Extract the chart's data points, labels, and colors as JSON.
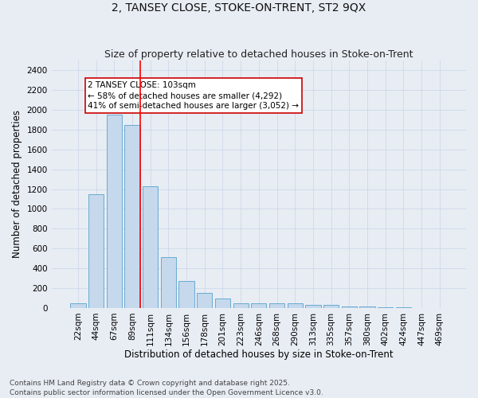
{
  "title1": "2, TANSEY CLOSE, STOKE-ON-TRENT, ST2 9QX",
  "title2": "Size of property relative to detached houses in Stoke-on-Trent",
  "xlabel": "Distribution of detached houses by size in Stoke-on-Trent",
  "ylabel": "Number of detached properties",
  "categories": [
    "22sqm",
    "44sqm",
    "67sqm",
    "89sqm",
    "111sqm",
    "134sqm",
    "156sqm",
    "178sqm",
    "201sqm",
    "223sqm",
    "246sqm",
    "268sqm",
    "290sqm",
    "313sqm",
    "335sqm",
    "357sqm",
    "380sqm",
    "402sqm",
    "424sqm",
    "447sqm",
    "469sqm"
  ],
  "values": [
    50,
    1150,
    1950,
    1850,
    1230,
    510,
    270,
    155,
    95,
    50,
    50,
    50,
    45,
    35,
    30,
    18,
    12,
    7,
    5,
    3,
    2
  ],
  "bar_color": "#c5d8ec",
  "bar_edge_color": "#6aabd2",
  "grid_color": "#cdd8e8",
  "background_color": "#e8edf4",
  "red_line_index": 3.42,
  "annotation_text": "2 TANSEY CLOSE: 103sqm\n← 58% of detached houses are smaller (4,292)\n41% of semi-detached houses are larger (3,052) →",
  "annotation_box_color": "#ffffff",
  "annotation_box_edge": "#cc0000",
  "ylim_max": 2500,
  "yticks": [
    0,
    200,
    400,
    600,
    800,
    1000,
    1200,
    1400,
    1600,
    1800,
    2000,
    2200,
    2400
  ],
  "footnote": "Contains HM Land Registry data © Crown copyright and database right 2025.\nContains public sector information licensed under the Open Government Licence v3.0.",
  "title1_fontsize": 10,
  "title2_fontsize": 9,
  "xlabel_fontsize": 8.5,
  "ylabel_fontsize": 8.5,
  "tick_fontsize": 7.5,
  "annotation_fontsize": 7.5,
  "footnote_fontsize": 6.5
}
